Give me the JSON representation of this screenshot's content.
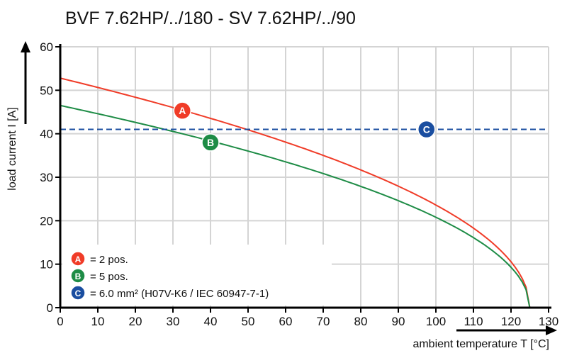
{
  "chart_data": {
    "type": "line",
    "title": "BVF 7.62HP/../180 - SV 7.62HP/../90",
    "xlabel": "ambient temperature T [°C]",
    "ylabel": "load current I [A]",
    "xlim": [
      0,
      130
    ],
    "ylim": [
      0,
      60
    ],
    "xticks": [
      0,
      10,
      20,
      30,
      40,
      50,
      60,
      70,
      80,
      90,
      100,
      110,
      120,
      130
    ],
    "yticks": [
      0,
      10,
      20,
      30,
      40,
      50,
      60
    ],
    "grid": true,
    "legend_placement": "bottom-left",
    "series": [
      {
        "marker": "A",
        "color": "#f03c28",
        "x": [
          0,
          10,
          20,
          30,
          40,
          50,
          60,
          70,
          80,
          90,
          100,
          110,
          115,
          120,
          125
        ],
        "y": [
          52.8,
          50.7,
          48.4,
          46.1,
          43.6,
          40.9,
          38.1,
          35.0,
          31.7,
          27.9,
          23.6,
          18.3,
          14.9,
          10.6,
          0
        ],
        "label_at": [
          32.5,
          45.3
        ]
      },
      {
        "marker": "B",
        "color": "#1e8c46",
        "x": [
          0,
          10,
          20,
          30,
          40,
          50,
          60,
          70,
          80,
          90,
          100,
          110,
          115,
          120,
          125
        ],
        "y": [
          46.5,
          44.6,
          42.6,
          40.5,
          38.4,
          36.0,
          33.5,
          30.8,
          27.9,
          24.6,
          20.8,
          16.1,
          13.2,
          9.3,
          0
        ],
        "label_at": [
          40,
          38
        ]
      },
      {
        "marker": "C",
        "color": "#1a4ea0",
        "dashed": true,
        "x": [
          0,
          130
        ],
        "y": [
          41.0,
          41.0
        ],
        "label_at": [
          97.5,
          41.0
        ]
      }
    ],
    "legend": [
      {
        "marker": "A",
        "text": "= 2 pos."
      },
      {
        "marker": "B",
        "text": "= 5 pos."
      },
      {
        "marker": "C",
        "text": "= 6.0 mm² (H07V-K6 / IEC 60947-7-1)"
      }
    ]
  }
}
